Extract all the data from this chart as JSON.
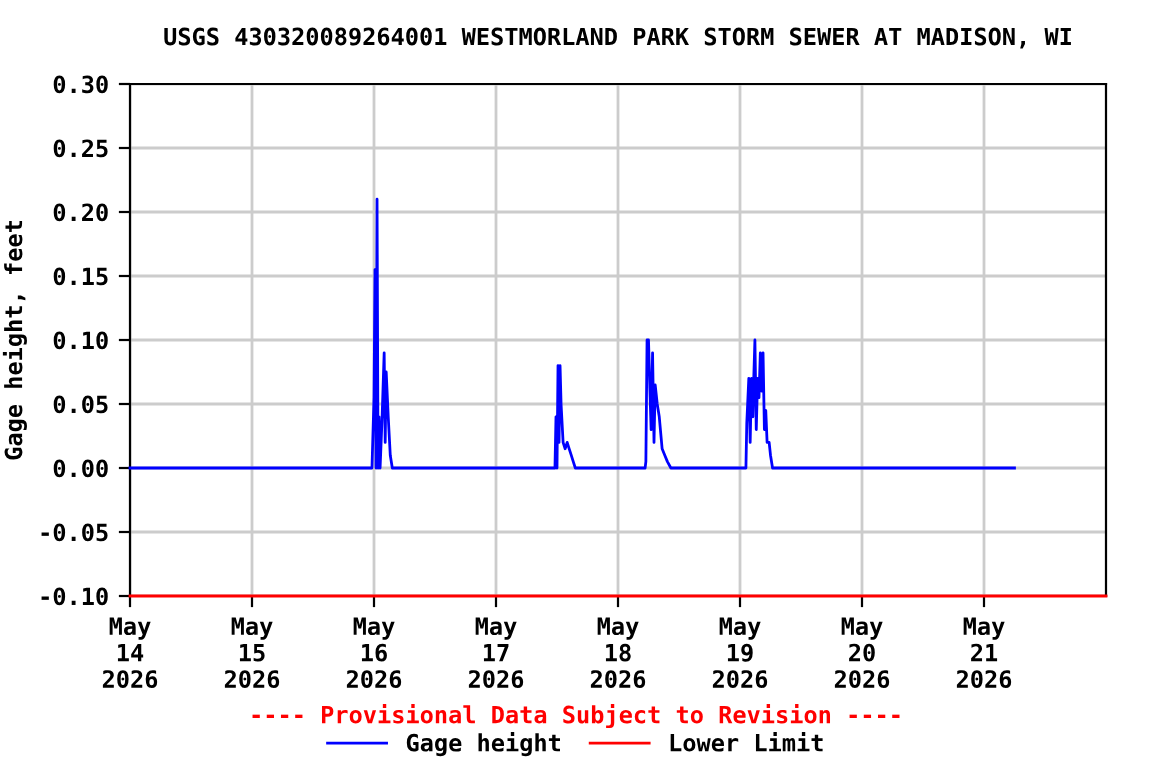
{
  "chart_data": {
    "type": "line",
    "title": "USGS 430320089264001 WESTMORLAND PARK STORM SEWER AT MADISON, WI",
    "ylabel": "Gage height, feet",
    "xlim": [
      "2026-05-14T00:00",
      "2026-05-22T00:00"
    ],
    "xticks": [
      {
        "value": "2026-05-14T00:00",
        "label": "May\n14\n2026"
      },
      {
        "value": "2026-05-15T00:00",
        "label": "May\n15\n2026"
      },
      {
        "value": "2026-05-16T00:00",
        "label": "May\n16\n2026"
      },
      {
        "value": "2026-05-17T00:00",
        "label": "May\n17\n2026"
      },
      {
        "value": "2026-05-18T00:00",
        "label": "May\n18\n2026"
      },
      {
        "value": "2026-05-19T00:00",
        "label": "May\n19\n2026"
      },
      {
        "value": "2026-05-20T00:00",
        "label": "May\n20\n2026"
      },
      {
        "value": "2026-05-21T00:00",
        "label": "May\n21\n2026"
      }
    ],
    "ylim": [
      -0.1,
      0.3
    ],
    "yticks": [
      {
        "value": -0.1,
        "label": "-0.10"
      },
      {
        "value": -0.05,
        "label": "-0.05"
      },
      {
        "value": 0,
        "label": "0.00"
      },
      {
        "value": 0.05,
        "label": "0.05"
      },
      {
        "value": 0.1,
        "label": "0.10"
      },
      {
        "value": 0.15,
        "label": "0.15"
      },
      {
        "value": 0.2,
        "label": "0.20"
      },
      {
        "value": 0.25,
        "label": "0.25"
      },
      {
        "value": 0.3,
        "label": "0.30"
      }
    ],
    "grid": true,
    "legend": "bottom",
    "line_style": "solid",
    "annotations": [
      "---- Provisional Data Subject to Revision ----"
    ],
    "series": [
      {
        "name": "Gage height",
        "color": "#0000ff",
        "x": [
          "2026-05-14T00:00",
          "2026-05-15T23:36",
          "2026-05-16T00:00",
          "2026-05-16T00:12",
          "2026-05-16T00:24",
          "2026-05-16T00:36",
          "2026-05-16T00:48",
          "2026-05-16T01:00",
          "2026-05-16T01:12",
          "2026-05-16T01:36",
          "2026-05-16T02:00",
          "2026-05-16T02:12",
          "2026-05-16T02:24",
          "2026-05-16T02:48",
          "2026-05-16T03:12",
          "2026-05-16T03:36",
          "2026-05-17T11:36",
          "2026-05-17T11:48",
          "2026-05-17T12:00",
          "2026-05-17T12:12",
          "2026-05-17T12:24",
          "2026-05-17T12:36",
          "2026-05-17T12:48",
          "2026-05-17T13:12",
          "2026-05-17T13:36",
          "2026-05-17T14:00",
          "2026-05-17T14:24",
          "2026-05-17T14:48",
          "2026-05-17T15:12",
          "2026-05-17T15:36",
          "2026-05-18T05:20",
          "2026-05-18T05:29",
          "2026-05-18T05:43",
          "2026-05-18T06:00",
          "2026-05-18T06:17",
          "2026-05-18T06:31",
          "2026-05-18T06:48",
          "2026-05-18T07:05",
          "2026-05-18T07:19",
          "2026-05-18T07:43",
          "2026-05-18T08:07",
          "2026-05-18T08:41",
          "2026-05-18T09:12",
          "2026-05-18T09:43",
          "2026-05-18T10:24",
          "2026-05-19T01:10",
          "2026-05-19T01:20",
          "2026-05-19T01:44",
          "2026-05-19T02:00",
          "2026-05-19T02:16",
          "2026-05-19T02:32",
          "2026-05-19T02:40",
          "2026-05-19T02:56",
          "2026-05-19T03:12",
          "2026-05-19T03:28",
          "2026-05-19T03:44",
          "2026-05-19T04:00",
          "2026-05-19T04:16",
          "2026-05-19T04:32",
          "2026-05-19T04:48",
          "2026-05-19T05:04",
          "2026-05-19T05:20",
          "2026-05-19T05:44",
          "2026-05-19T06:00",
          "2026-05-19T06:24",
          "2026-05-21T06:00"
        ],
        "values": [
          0,
          0,
          0.055,
          0.155,
          0,
          0.21,
          0,
          0.04,
          0,
          0.04,
          0.09,
          0.02,
          0.075,
          0.04,
          0.01,
          0,
          0,
          0.04,
          0,
          0.08,
          0.02,
          0.08,
          0.05,
          0.02,
          0.015,
          0.02,
          0.015,
          0.01,
          0.005,
          0,
          0,
          0.005,
          0.1,
          0.1,
          0.06,
          0.03,
          0.09,
          0.02,
          0.065,
          0.05,
          0.04,
          0.015,
          0.01,
          0.005,
          0,
          0,
          0.035,
          0.07,
          0.02,
          0.07,
          0.04,
          0.065,
          0.1,
          0.03,
          0.07,
          0.055,
          0.09,
          0.06,
          0.09,
          0.03,
          0.045,
          0.02,
          0.02,
          0.01,
          0,
          0
        ]
      },
      {
        "name": "Lower Limit",
        "color": "#ff0000",
        "x": [
          "2026-05-14T00:00",
          "2026-05-22T00:00"
        ],
        "values": [
          -0.1,
          -0.1
        ]
      }
    ]
  }
}
